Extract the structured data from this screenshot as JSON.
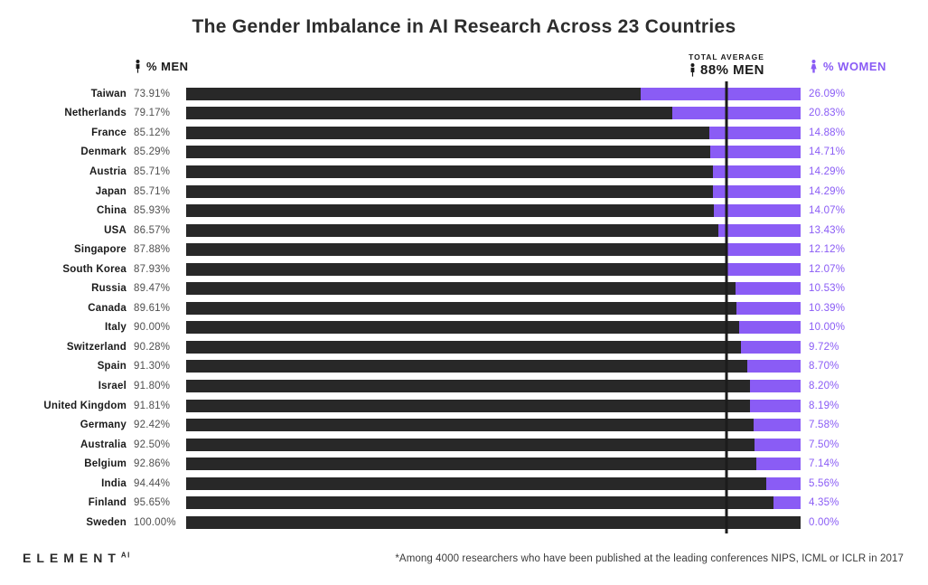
{
  "title": "The Gender Imbalance in AI Research Across 23 Countries",
  "legend": {
    "men_label": "% MEN",
    "women_label": "% WOMEN"
  },
  "average": {
    "label_top": "TOTAL AVERAGE",
    "label_value": "88% MEN",
    "value_pct": 88
  },
  "colors": {
    "men_bar": "#282828",
    "women_bar": "#8a5cf5",
    "women_text": "#8a5cf5",
    "title_text": "#2d2d2d",
    "men_value_text": "#4f4f4f",
    "average_line": "#1c1c1c",
    "background": "#ffffff"
  },
  "footer": {
    "logo_text": "ELEMENT",
    "logo_sup": "AI",
    "footnote": "*Among 4000 researchers who have been published at the leading conferences NIPS, ICML or ICLR in 2017"
  },
  "chart_data": {
    "type": "bar",
    "orientation": "horizontal",
    "stacked": true,
    "title": "The Gender Imbalance in AI Research Across 23 Countries",
    "xlim": [
      0,
      100
    ],
    "grid": false,
    "legend_position": "top",
    "categories": [
      "Taiwan",
      "Netherlands",
      "France",
      "Denmark",
      "Austria",
      "Japan",
      "China",
      "USA",
      "Singapore",
      "South Korea",
      "Russia",
      "Canada",
      "Italy",
      "Switzerland",
      "Spain",
      "Israel",
      "United Kingdom",
      "Germany",
      "Australia",
      "Belgium",
      "India",
      "Finland",
      "Sweden"
    ],
    "series": [
      {
        "name": "% MEN",
        "color": "#282828",
        "values": [
          73.91,
          79.17,
          85.12,
          85.29,
          85.71,
          85.71,
          85.93,
          86.57,
          87.88,
          87.93,
          89.47,
          89.61,
          90.0,
          90.28,
          91.3,
          91.8,
          91.81,
          92.42,
          92.5,
          92.86,
          94.44,
          95.65,
          100.0
        ]
      },
      {
        "name": "% WOMEN",
        "color": "#8a5cf5",
        "values": [
          26.09,
          20.83,
          14.88,
          14.71,
          14.29,
          14.29,
          14.07,
          13.43,
          12.12,
          12.07,
          10.53,
          10.39,
          10.0,
          9.72,
          8.7,
          8.2,
          8.19,
          7.58,
          7.5,
          7.14,
          5.56,
          4.35,
          0.0
        ]
      }
    ],
    "men_labels": [
      "73.91%",
      "79.17%",
      "85.12%",
      "85.29%",
      "85.71%",
      "85.71%",
      "85.93%",
      "86.57%",
      "87.88%",
      "87.93%",
      "89.47%",
      "89.61%",
      "90.00%",
      "90.28%",
      "91.30%",
      "91.80%",
      "91.81%",
      "92.42%",
      "92.50%",
      "92.86%",
      "94.44%",
      "95.65%",
      "100.00%"
    ],
    "women_labels": [
      "26.09%",
      "20.83%",
      "14.88%",
      "14.71%",
      "14.29%",
      "14.29%",
      "14.07%",
      "13.43%",
      "12.12%",
      "12.07%",
      "10.53%",
      "10.39%",
      "10.00%",
      "9.72%",
      "8.70%",
      "8.20%",
      "8.19%",
      "7.58%",
      "7.50%",
      "7.14%",
      "5.56%",
      "4.35%",
      "0.00%"
    ],
    "annotation": {
      "label_top": "TOTAL AVERAGE",
      "label_value": "88% MEN",
      "x": 88
    },
    "footnote": "*Among 4000 researchers who have been published at the leading conferences NIPS, ICML or ICLR in 2017"
  }
}
